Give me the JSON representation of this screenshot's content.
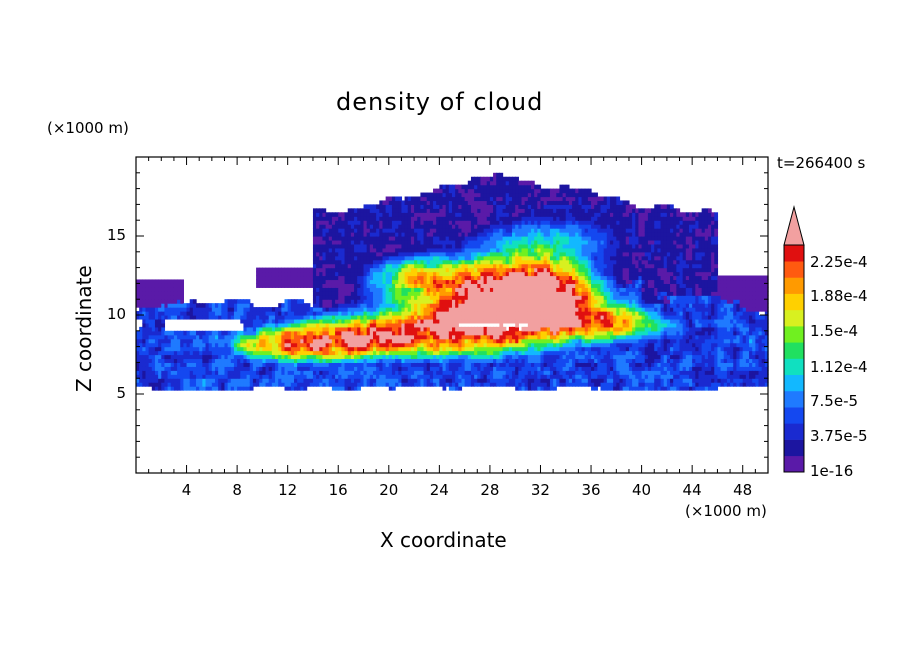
{
  "chart_data": {
    "type": "heatmap",
    "title": "density of cloud",
    "xlabel": "X coordinate",
    "ylabel": "Z coordinate",
    "x_unit": "(×1000 m)",
    "y_unit": "(×1000 m)",
    "time_label": "t=266400 s",
    "xlim": [
      0,
      50
    ],
    "ylim": [
      0,
      20
    ],
    "xticks": [
      4,
      8,
      12,
      16,
      20,
      24,
      28,
      32,
      36,
      40,
      44,
      48
    ],
    "yticks": [
      5,
      10,
      15
    ],
    "colorbar": {
      "labels": [
        "2.25e-4",
        "1.88e-4",
        "1.5e-4",
        "1.12e-4",
        "7.5e-5",
        "3.75e-5",
        "1e-16"
      ],
      "label_values": [
        0.000225,
        0.000188,
        0.00015,
        0.000112,
        7.5e-05,
        3.75e-05,
        1e-16
      ],
      "levels": [
        1e-16,
        1.88e-05,
        3.75e-05,
        5.62e-05,
        7.5e-05,
        9.38e-05,
        0.000112,
        0.000131,
        0.00015,
        0.000169,
        0.000188,
        0.000206,
        0.000225,
        0.000244
      ],
      "colors": [
        "#5a1aa8",
        "#1c15a0",
        "#1a2ad0",
        "#1448f0",
        "#1f7aff",
        "#12b8ff",
        "#10e0c0",
        "#20e060",
        "#70f020",
        "#d8f020",
        "#ffd000",
        "#ff9a00",
        "#ff5a10",
        "#e01010",
        "#f2a0a0"
      ],
      "extend": "max"
    },
    "regions": [
      {
        "level": 0,
        "x_range": [
          0,
          50
        ],
        "z_range": [
          5.5,
          18.3
        ],
        "description_value": "1e-16"
      },
      {
        "level": 4,
        "x_range": [
          2,
          46
        ],
        "z_range": [
          6,
          11
        ],
        "description_value": "7.5e-5"
      },
      {
        "level": 8,
        "x_range": [
          10,
          40
        ],
        "z_range": [
          7,
          11
        ],
        "description_value": "1.5e-4"
      },
      {
        "level": 12,
        "x_range": [
          19,
          36
        ],
        "z_range": [
          8,
          14
        ],
        "description_value": "2.25e-4"
      },
      {
        "level": 14,
        "x_range": [
          22,
          34
        ],
        "z_range": [
          8.5,
          13
        ],
        "description_value": ">2.44e-4"
      }
    ]
  }
}
